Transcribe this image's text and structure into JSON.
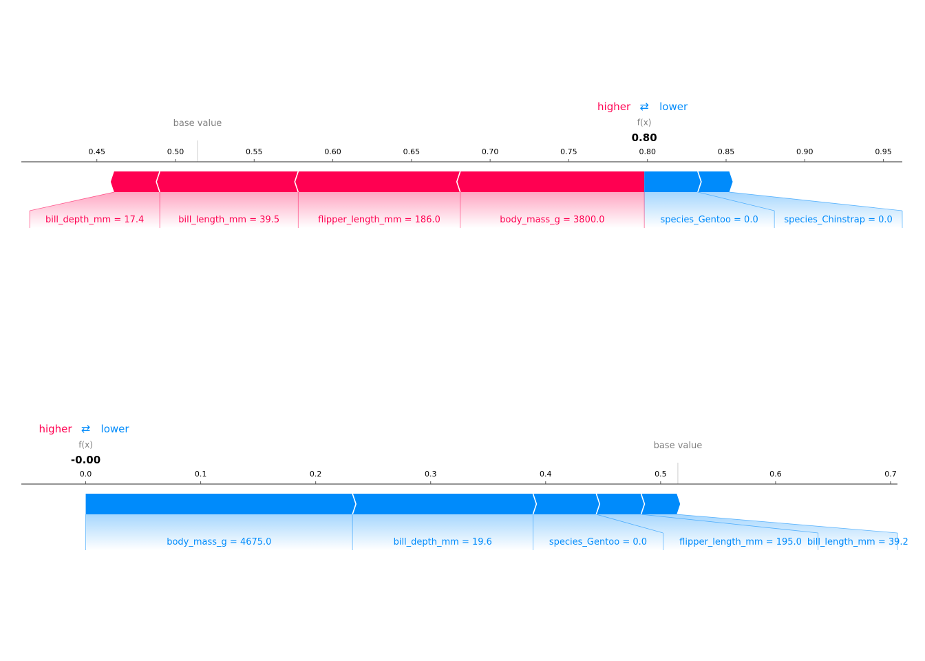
{
  "colors": {
    "higher": "#ff0051",
    "lower": "#008bfb",
    "base": "#808080",
    "axis": "#000000"
  },
  "legend": {
    "higher": "higher",
    "lower": "lower",
    "arrow": "⇄"
  },
  "chart_data": [
    {
      "type": "force",
      "legend_position": "top-right",
      "fx_label": "f(x)",
      "fx_value_label": "0.80",
      "base_label": "base value",
      "fx": 0.798,
      "base_value": 0.514,
      "xlim": [
        0.402,
        0.962
      ],
      "ticks": [
        0.45,
        0.5,
        0.55,
        0.6,
        0.65,
        0.7,
        0.75,
        0.8,
        0.85,
        0.9,
        0.95
      ],
      "tick_labels": [
        "0.45",
        "0.50",
        "0.55",
        "0.60",
        "0.65",
        "0.70",
        "0.75",
        "0.80",
        "0.85",
        "0.90",
        "0.95"
      ],
      "positive": [
        {
          "label": "body_mass_g = 3800.0",
          "from": 0.798,
          "to": 0.681
        },
        {
          "label": "flipper_length_mm = 186.0",
          "from": 0.681,
          "to": 0.578
        },
        {
          "label": "bill_length_mm = 39.5",
          "from": 0.578,
          "to": 0.49
        },
        {
          "label": "bill_depth_mm = 17.4",
          "from": 0.49,
          "to": 0.461
        }
      ],
      "negative": [
        {
          "label": "species_Gentoo = 0.0",
          "from": 0.798,
          "to": 0.832
        },
        {
          "label": "species_Chinstrap = 0.0",
          "from": 0.832,
          "to": 0.852
        }
      ]
    },
    {
      "type": "force",
      "legend_position": "top-left",
      "fx_label": "f(x)",
      "fx_value_label": "-0.00",
      "base_label": "base value",
      "fx": 0.0,
      "base_value": 0.515,
      "xlim": [
        -0.056,
        0.706
      ],
      "ticks": [
        0.0,
        0.1,
        0.2,
        0.3,
        0.4,
        0.5,
        0.6,
        0.7
      ],
      "tick_labels": [
        "0.0",
        "0.1",
        "0.2",
        "0.3",
        "0.4",
        "0.5",
        "0.6",
        "0.7"
      ],
      "positive": [],
      "negative": [
        {
          "label": "body_mass_g = 4675.0",
          "from": 0.0,
          "to": 0.232
        },
        {
          "label": "bill_depth_mm = 19.6",
          "from": 0.232,
          "to": 0.389
        },
        {
          "label": "species_Gentoo = 0.0",
          "from": 0.389,
          "to": 0.444
        },
        {
          "label": "flipper_length_mm = 195.0",
          "from": 0.444,
          "to": 0.483
        },
        {
          "label": "bill_length_mm = 39.2",
          "from": 0.483,
          "to": 0.514
        }
      ]
    }
  ]
}
